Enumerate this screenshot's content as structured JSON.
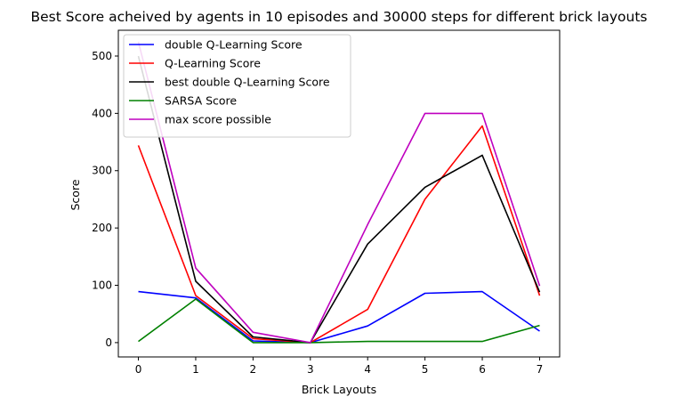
{
  "chart_data": {
    "type": "line",
    "title": "Best Score acheived by agents in 10 episodes and 30000 steps for different brick layouts",
    "xlabel": "Brick Layouts",
    "ylabel": "Score",
    "x": [
      0,
      1,
      2,
      3,
      4,
      5,
      6,
      7
    ],
    "xlim": [
      -0.35,
      7.35
    ],
    "ylim": [
      -25,
      545
    ],
    "xticks": [
      0,
      1,
      2,
      3,
      4,
      5,
      6,
      7
    ],
    "yticks": [
      0,
      100,
      200,
      300,
      400,
      500
    ],
    "grid": false,
    "legend_position": "upper-left",
    "series": [
      {
        "name": "double Q-Learning Score",
        "color": "#0000ff",
        "values": [
          89,
          78,
          3,
          0,
          29,
          86,
          89,
          20
        ]
      },
      {
        "name": "Q-Learning Score",
        "color": "#ff0000",
        "values": [
          344,
          82,
          7,
          0,
          58,
          250,
          378,
          82
        ]
      },
      {
        "name": "best double Q-Learning Score",
        "color": "#000000",
        "values": [
          500,
          107,
          10,
          0,
          172,
          271,
          327,
          88
        ]
      },
      {
        "name": "SARSA Score",
        "color": "#008000",
        "values": [
          2,
          76,
          0,
          0,
          2,
          2,
          2,
          30
        ]
      },
      {
        "name": "max score possible",
        "color": "#bf00bf",
        "values": [
          525,
          130,
          18,
          0,
          206,
          400,
          400,
          99
        ]
      }
    ]
  }
}
